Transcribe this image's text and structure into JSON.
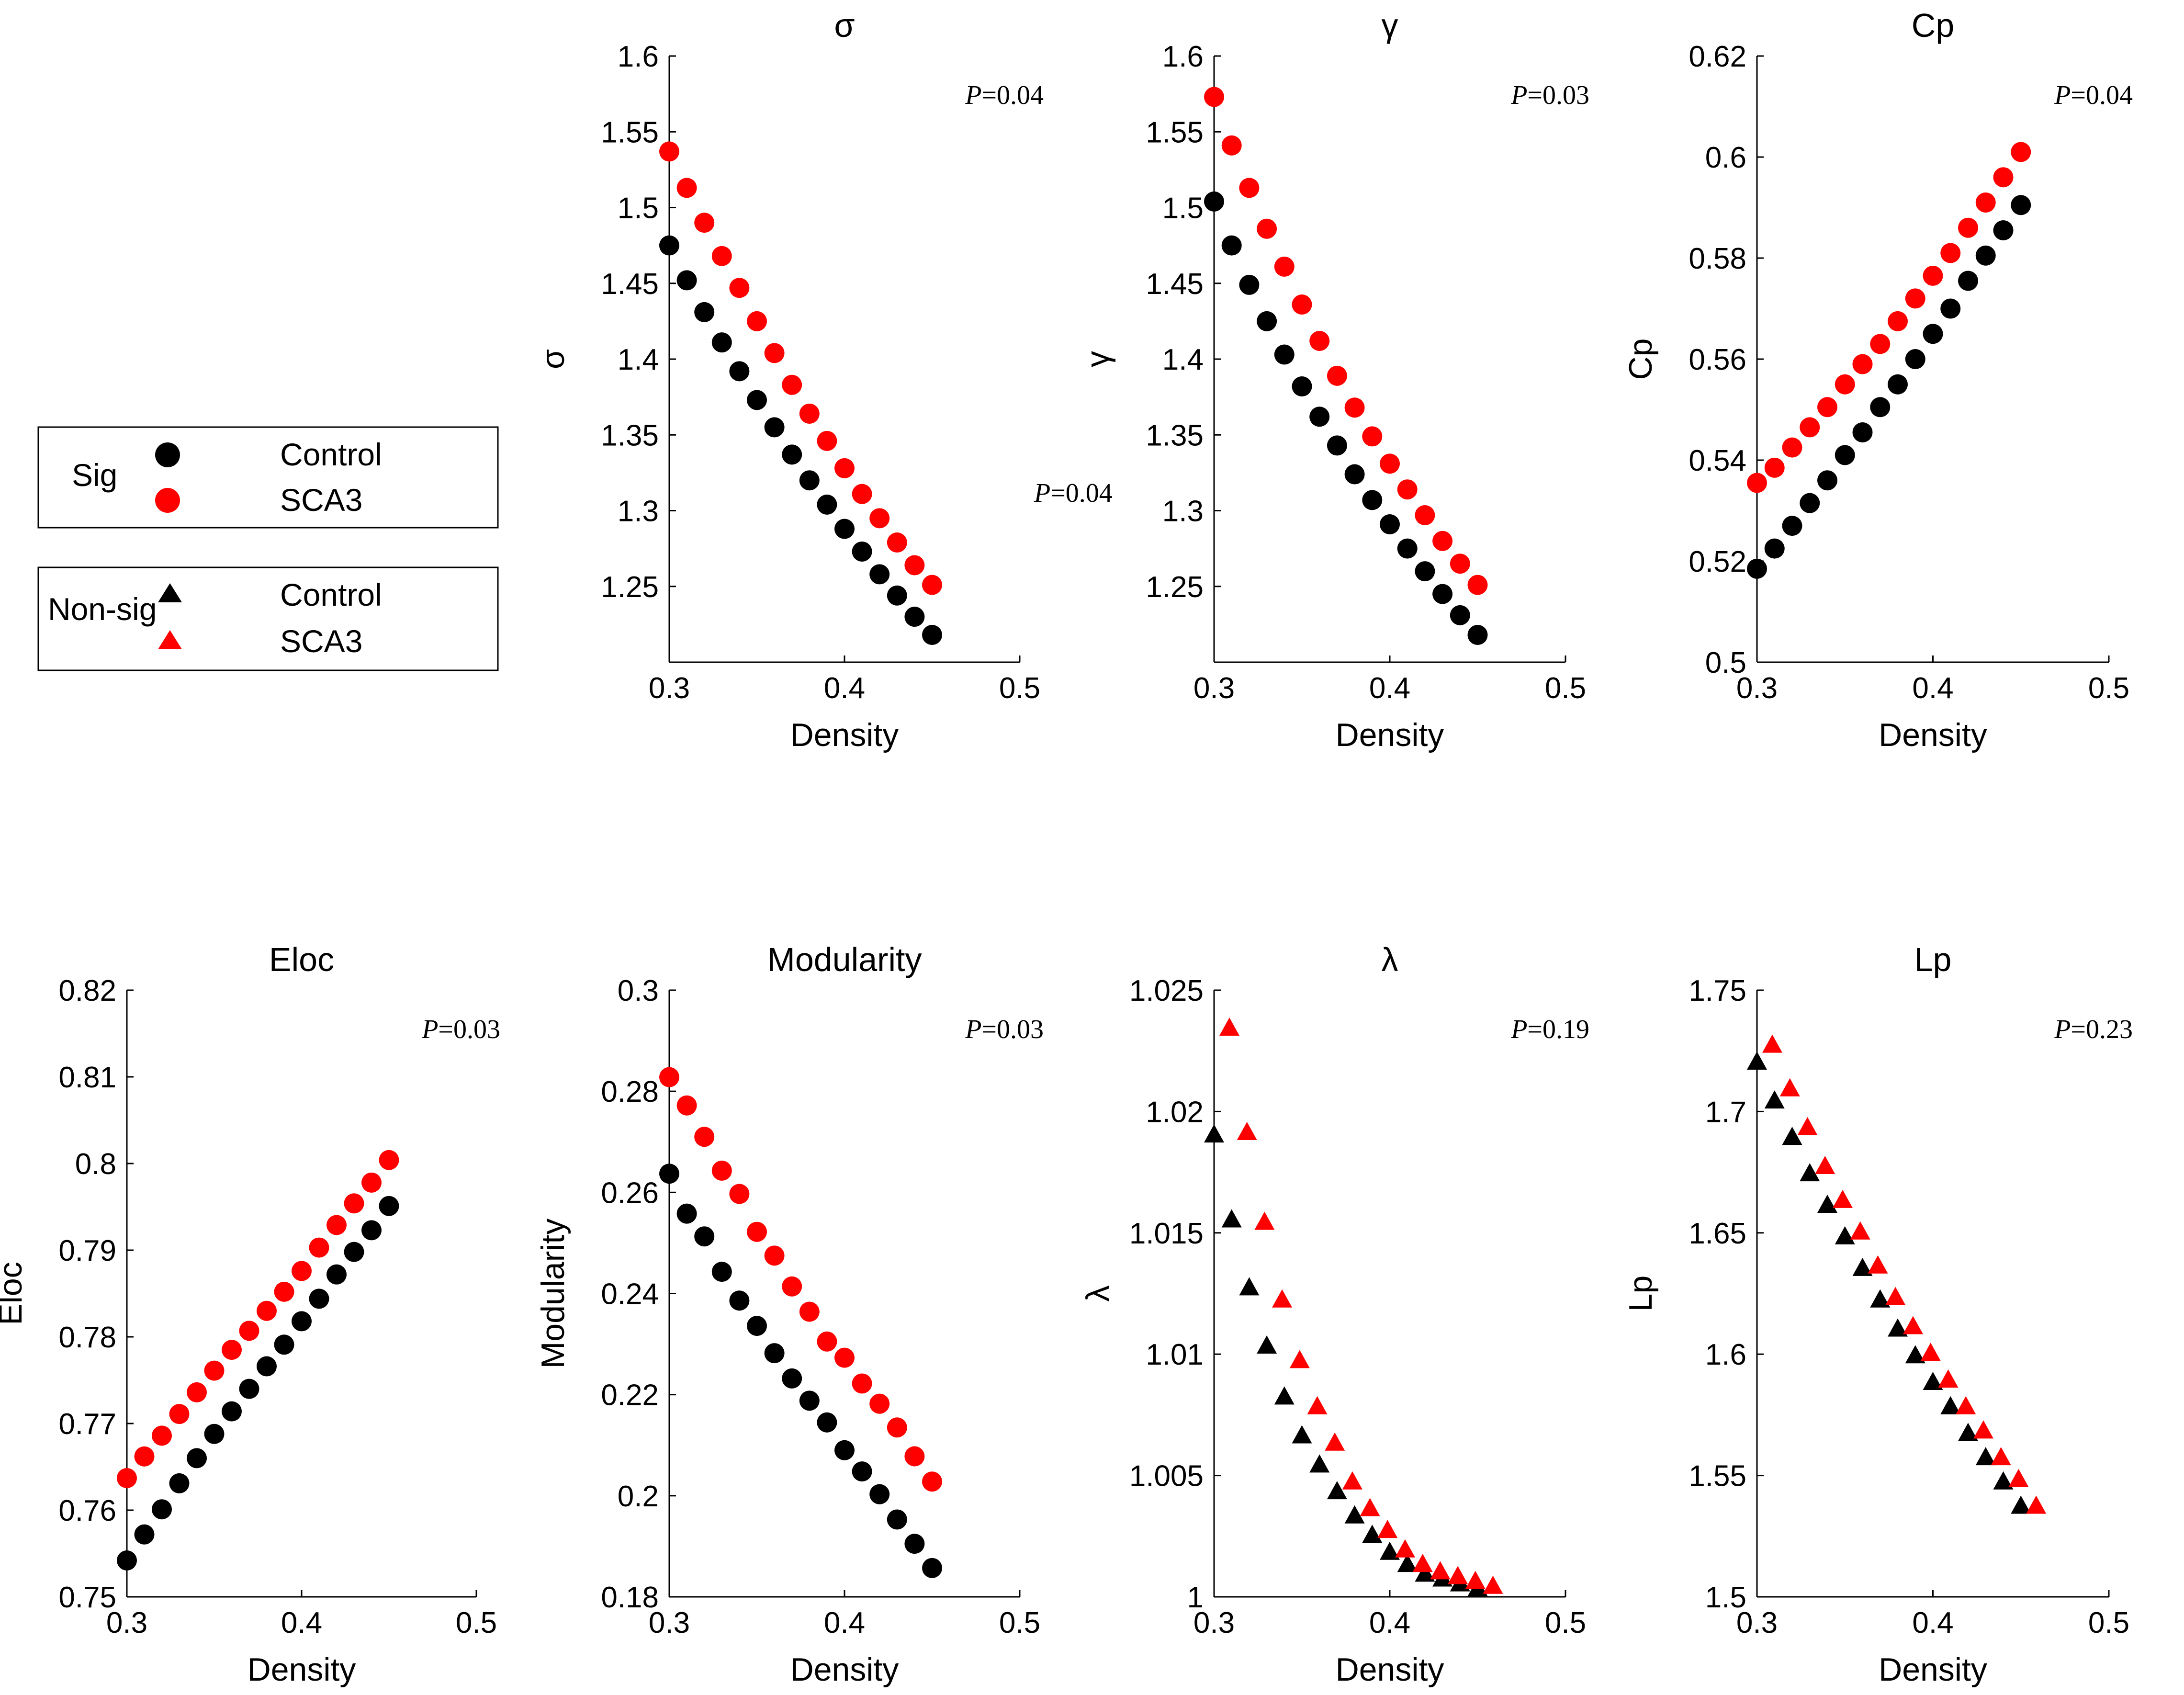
{
  "colors": {
    "control": "#000000",
    "sca3": "#ff0000"
  },
  "legends": [
    {
      "group": "Sig",
      "marker": "circle",
      "entries": [
        {
          "label": "Control",
          "color_key": "control"
        },
        {
          "label": "SCA3",
          "color_key": "sca3"
        }
      ]
    },
    {
      "group": "Non-sig",
      "marker": "triangle",
      "entries": [
        {
          "label": "Control",
          "color_key": "control"
        },
        {
          "label": "SCA3",
          "color_key": "sca3"
        }
      ]
    }
  ],
  "stray_pvalue": {
    "prefix": "P",
    "text": "=0.04"
  },
  "chart_data": [
    {
      "type": "scatter",
      "marker": "circle",
      "title": "σ",
      "ylabel": "σ",
      "xlabel": "Density",
      "xlim": [
        0.3,
        0.5
      ],
      "xticks": [
        "0.3",
        "0.4",
        "0.5"
      ],
      "ylim": [
        1.2,
        1.6
      ],
      "yticks": [
        "1.25",
        "1.3",
        "1.35",
        "1.4",
        "1.45",
        "1.5",
        "1.55",
        "1.6"
      ],
      "p_value": {
        "prefix": "P",
        "text": "=0.04"
      },
      "x": [
        0.3,
        0.31,
        0.32,
        0.33,
        0.34,
        0.35,
        0.36,
        0.37,
        0.38,
        0.39,
        0.4,
        0.41,
        0.42,
        0.43,
        0.44,
        0.45
      ],
      "series": [
        {
          "name": "Control",
          "values": [
            1.475,
            1.452,
            1.431,
            1.411,
            1.392,
            1.373,
            1.355,
            1.337,
            1.32,
            1.304,
            1.288,
            1.273,
            1.258,
            1.244,
            1.23,
            1.218
          ]
        },
        {
          "name": "SCA3",
          "values": [
            1.537,
            1.513,
            1.49,
            1.468,
            1.447,
            1.425,
            1.404,
            1.383,
            1.364,
            1.346,
            1.328,
            1.311,
            1.295,
            1.279,
            1.264,
            1.251
          ]
        }
      ]
    },
    {
      "type": "scatter",
      "marker": "circle",
      "title": "γ",
      "ylabel": "γ",
      "xlabel": "Density",
      "xlim": [
        0.3,
        0.5
      ],
      "xticks": [
        "0.3",
        "0.4",
        "0.5"
      ],
      "ylim": [
        1.2,
        1.6
      ],
      "yticks": [
        "1.25",
        "1.3",
        "1.35",
        "1.4",
        "1.45",
        "1.5",
        "1.55",
        "1.6"
      ],
      "p_value": {
        "prefix": "P",
        "text": "=0.03"
      },
      "x": [
        0.3,
        0.31,
        0.32,
        0.33,
        0.34,
        0.35,
        0.36,
        0.37,
        0.38,
        0.39,
        0.4,
        0.41,
        0.42,
        0.43,
        0.44,
        0.45
      ],
      "series": [
        {
          "name": "Control",
          "values": [
            1.504,
            1.475,
            1.449,
            1.425,
            1.403,
            1.382,
            1.362,
            1.343,
            1.324,
            1.307,
            1.291,
            1.275,
            1.26,
            1.245,
            1.231,
            1.218
          ]
        },
        {
          "name": "SCA3",
          "values": [
            1.573,
            1.541,
            1.513,
            1.486,
            1.461,
            1.436,
            1.412,
            1.389,
            1.368,
            1.349,
            1.331,
            1.314,
            1.297,
            1.28,
            1.265,
            1.251
          ]
        }
      ]
    },
    {
      "type": "scatter",
      "marker": "circle",
      "title": "Cp",
      "ylabel": "Cp",
      "xlabel": "Density",
      "xlim": [
        0.3,
        0.5
      ],
      "xticks": [
        "0.3",
        "0.4",
        "0.5"
      ],
      "ylim": [
        0.5,
        0.62
      ],
      "yticks": [
        "0.5",
        "0.52",
        "0.54",
        "0.56",
        "0.58",
        "0.6",
        "0.62"
      ],
      "p_value": {
        "prefix": "P",
        "text": "=0.04"
      },
      "x": [
        0.3,
        0.31,
        0.32,
        0.33,
        0.34,
        0.35,
        0.36,
        0.37,
        0.38,
        0.39,
        0.4,
        0.41,
        0.42,
        0.43,
        0.44,
        0.45
      ],
      "series": [
        {
          "name": "Control",
          "values": [
            0.5185,
            0.5225,
            0.527,
            0.5315,
            0.536,
            0.541,
            0.5455,
            0.5505,
            0.555,
            0.56,
            0.565,
            0.57,
            0.5755,
            0.5805,
            0.5855,
            0.5905
          ]
        },
        {
          "name": "SCA3",
          "values": [
            0.5355,
            0.5385,
            0.5425,
            0.5465,
            0.5505,
            0.555,
            0.559,
            0.563,
            0.5675,
            0.572,
            0.5765,
            0.581,
            0.586,
            0.591,
            0.596,
            0.601
          ]
        }
      ]
    },
    {
      "type": "scatter",
      "marker": "circle",
      "title": "Eloc",
      "ylabel": "Eloc",
      "xlabel": "Density",
      "xlim": [
        0.3,
        0.5
      ],
      "xticks": [
        "0.3",
        "0.4",
        "0.5"
      ],
      "ylim": [
        0.75,
        0.82
      ],
      "yticks": [
        "0.75",
        "0.76",
        "0.77",
        "0.78",
        "0.79",
        "0.8",
        "0.81",
        "0.82"
      ],
      "p_value": {
        "prefix": "P",
        "text": "=0.03"
      },
      "x": [
        0.3,
        0.31,
        0.32,
        0.33,
        0.34,
        0.35,
        0.36,
        0.37,
        0.38,
        0.39,
        0.4,
        0.41,
        0.42,
        0.43,
        0.44,
        0.45
      ],
      "series": [
        {
          "name": "Control",
          "values": [
            0.7542,
            0.7572,
            0.7601,
            0.7631,
            0.766,
            0.7688,
            0.7714,
            0.774,
            0.7766,
            0.7791,
            0.7818,
            0.7844,
            0.7872,
            0.7898,
            0.7923,
            0.7951
          ]
        },
        {
          "name": "SCA3",
          "values": [
            0.7637,
            0.7662,
            0.7686,
            0.7711,
            0.7736,
            0.7761,
            0.7785,
            0.7807,
            0.783,
            0.7852,
            0.7876,
            0.7903,
            0.7929,
            0.7954,
            0.7978,
            0.8004
          ]
        }
      ]
    },
    {
      "type": "scatter",
      "marker": "circle",
      "title": "Modularity",
      "ylabel": "Modularity",
      "xlabel": "Density",
      "xlim": [
        0.3,
        0.5
      ],
      "xticks": [
        "0.3",
        "0.4",
        "0.5"
      ],
      "ylim": [
        0.18,
        0.3
      ],
      "yticks": [
        "0.18",
        "0.2",
        "0.22",
        "0.24",
        "0.26",
        "0.28",
        "0.3"
      ],
      "p_value": {
        "prefix": "P",
        "text": "=0.03"
      },
      "x": [
        0.3,
        0.31,
        0.32,
        0.33,
        0.34,
        0.35,
        0.36,
        0.37,
        0.38,
        0.39,
        0.4,
        0.41,
        0.42,
        0.43,
        0.44,
        0.45
      ],
      "series": [
        {
          "name": "Control",
          "values": [
            0.2637,
            0.2558,
            0.2513,
            0.2443,
            0.2386,
            0.2336,
            0.2282,
            0.2232,
            0.2188,
            0.2145,
            0.209,
            0.2048,
            0.2003,
            0.1953,
            0.1905,
            0.1857
          ]
        },
        {
          "name": "SCA3",
          "values": [
            0.2828,
            0.2772,
            0.271,
            0.2643,
            0.2597,
            0.2522,
            0.2475,
            0.2414,
            0.2364,
            0.2305,
            0.2273,
            0.2222,
            0.2182,
            0.2135,
            0.2078,
            0.2028
          ]
        }
      ]
    },
    {
      "type": "scatter",
      "marker": "triangle",
      "title": "λ",
      "ylabel": "λ",
      "xlabel": "Density",
      "xlim": [
        0.3,
        0.5
      ],
      "xticks": [
        "0.3",
        "0.4",
        "0.5"
      ],
      "ylim": [
        1.0,
        1.025
      ],
      "yticks": [
        "1",
        "1.005",
        "1.01",
        "1.015",
        "1.02",
        "1.025"
      ],
      "p_value": {
        "prefix": "P",
        "text": "=0.19"
      },
      "x": [
        0.3,
        0.31,
        0.32,
        0.33,
        0.34,
        0.35,
        0.36,
        0.37,
        0.38,
        0.39,
        0.4,
        0.41,
        0.42,
        0.43,
        0.44,
        0.45
      ],
      "series": [
        {
          "name": "Control",
          "values": [
            1.019,
            1.0155,
            1.0127,
            1.0103,
            1.0082,
            1.0066,
            1.0054,
            1.0043,
            1.0033,
            1.0025,
            1.0018,
            1.0013,
            1.0009,
            1.0007,
            1.0005,
            1.0003
          ]
        },
        {
          "name": "SCA3",
          "values": [
            1.0234,
            1.0191,
            1.0154,
            1.0122,
            1.0097,
            1.0078,
            1.0063,
            1.0047,
            1.0036,
            1.0027,
            1.0019,
            1.0013,
            1.001,
            1.0008,
            1.0006,
            1.0004
          ]
        }
      ]
    },
    {
      "type": "scatter",
      "marker": "triangle",
      "title": "Lp",
      "ylabel": "Lp",
      "xlabel": "Density",
      "xlim": [
        0.3,
        0.5
      ],
      "xticks": [
        "0.3",
        "0.4",
        "0.5"
      ],
      "ylim": [
        1.5,
        1.75
      ],
      "yticks": [
        "1.5",
        "1.55",
        "1.6",
        "1.65",
        "1.7",
        "1.75"
      ],
      "p_value": {
        "prefix": "P",
        "text": "=0.23"
      },
      "x": [
        0.3,
        0.31,
        0.32,
        0.33,
        0.34,
        0.35,
        0.36,
        0.37,
        0.38,
        0.39,
        0.4,
        0.41,
        0.42,
        0.43,
        0.44,
        0.45
      ],
      "series": [
        {
          "name": "Control",
          "values": [
            1.72,
            1.704,
            1.689,
            1.674,
            1.661,
            1.648,
            1.635,
            1.622,
            1.61,
            1.599,
            1.588,
            1.578,
            1.567,
            1.557,
            1.547,
            1.537
          ]
        },
        {
          "name": "SCA3",
          "values": [
            1.727,
            1.709,
            1.693,
            1.677,
            1.663,
            1.65,
            1.636,
            1.623,
            1.611,
            1.6,
            1.589,
            1.578,
            1.568,
            1.557,
            1.548,
            1.537
          ]
        }
      ]
    }
  ]
}
